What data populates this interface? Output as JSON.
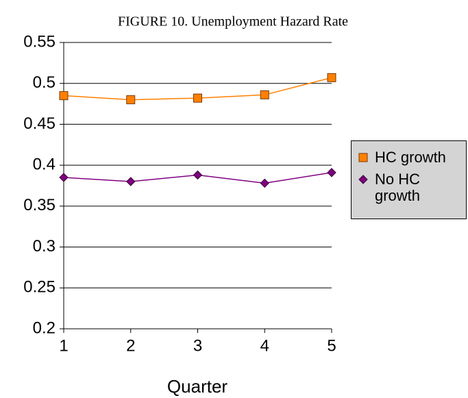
{
  "chart_data": {
    "type": "line",
    "title": "FIGURE 10.  Unemployment Hazard Rate",
    "x_label": "Quarter",
    "x": [
      1,
      2,
      3,
      4,
      5
    ],
    "series": [
      {
        "name": "HC growth",
        "color": "#ff8000",
        "marker": "square",
        "values": [
          0.485,
          0.48,
          0.482,
          0.486,
          0.507
        ]
      },
      {
        "name": "No HC growth",
        "color": "#800080",
        "marker": "diamond",
        "values": [
          0.385,
          0.38,
          0.388,
          0.378,
          0.391
        ]
      }
    ],
    "xlim": [
      1,
      5
    ],
    "xticks": [
      1,
      2,
      3,
      4,
      5
    ],
    "ylim": [
      0.2,
      0.55
    ],
    "yticks": [
      0.2,
      0.25,
      0.3,
      0.35,
      0.4,
      0.45,
      0.5,
      0.55
    ],
    "grid": true,
    "legend": "right"
  }
}
